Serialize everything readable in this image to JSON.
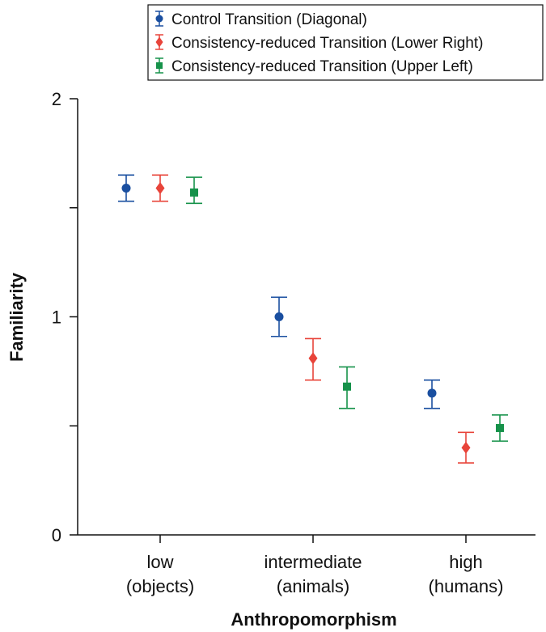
{
  "chart_data": {
    "type": "scatter",
    "xlabel": "Anthropomorphism",
    "ylabel": "Familiarity",
    "ylim": [
      0,
      2
    ],
    "yticks": [
      0,
      0.5,
      1,
      1.5,
      2
    ],
    "ytick_labels": [
      "0",
      "",
      "1",
      "",
      "2"
    ],
    "categories": [
      {
        "line1": "low",
        "line2": "(objects)"
      },
      {
        "line1": "intermediate",
        "line2": "(animals)"
      },
      {
        "line1": "high",
        "line2": "(humans)"
      }
    ],
    "legend_position": "top-right",
    "grid": false,
    "series": [
      {
        "name": "Control Transition (Diagonal)",
        "marker": "circle",
        "color": "#1a4fa0",
        "values": [
          1.59,
          1.0,
          0.65
        ],
        "err_low": [
          1.53,
          0.91,
          0.58
        ],
        "err_high": [
          1.65,
          1.09,
          0.71
        ]
      },
      {
        "name": "Consistency-reduced Transition (Lower Right)",
        "marker": "diamond",
        "color": "#e8443a",
        "values": [
          1.59,
          0.81,
          0.4
        ],
        "err_low": [
          1.53,
          0.71,
          0.33
        ],
        "err_high": [
          1.65,
          0.9,
          0.47
        ]
      },
      {
        "name": "Consistency-reduced Transition (Upper Left)",
        "marker": "square",
        "color": "#16924a",
        "values": [
          1.57,
          0.68,
          0.49
        ],
        "err_low": [
          1.52,
          0.58,
          0.43
        ],
        "err_high": [
          1.64,
          0.77,
          0.55
        ]
      }
    ]
  }
}
